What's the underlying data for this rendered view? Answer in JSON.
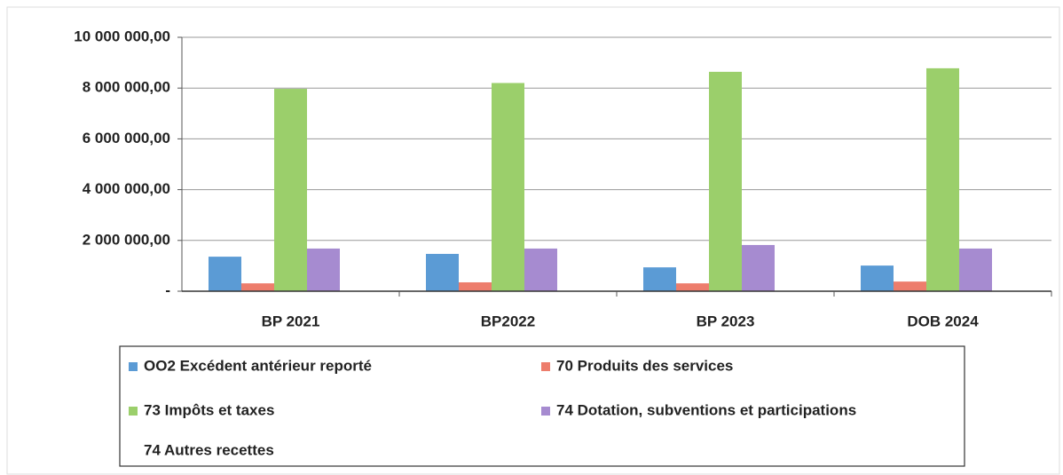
{
  "chart_data": {
    "type": "bar",
    "categories": [
      "BP 2021",
      "BP2022",
      "BP 2023",
      "DOB 2024"
    ],
    "series": [
      {
        "name": "OO2 Excédent antérieur reporté",
        "color": "#5b9bd5",
        "values": [
          1360000,
          1470000,
          940000,
          1010000
        ]
      },
      {
        "name": "70 Produits des services",
        "color": "#ed7d6c",
        "values": [
          310000,
          350000,
          310000,
          380000
        ]
      },
      {
        "name": "73 Impôts et taxes",
        "color": "#9bcf6b",
        "values": [
          7970000,
          8200000,
          8640000,
          8780000
        ]
      },
      {
        "name": "74 Dotation, subventions et participations",
        "color": "#a68bd0",
        "values": [
          1680000,
          1680000,
          1820000,
          1680000
        ]
      },
      {
        "name": "74 Autres recettes",
        "color": "#ffffff",
        "values": [
          0,
          0,
          0,
          0
        ]
      }
    ],
    "ylim": [
      0,
      10000000
    ],
    "yticks": [
      {
        "value": 0,
        "label": "-"
      },
      {
        "value": 2000000,
        "label": "2 000 000,00"
      },
      {
        "value": 4000000,
        "label": "4 000 000,00"
      },
      {
        "value": 6000000,
        "label": "6 000 000,00"
      },
      {
        "value": 8000000,
        "label": "8 000 000,00"
      },
      {
        "value": 10000000,
        "label": "10 000 000,00"
      }
    ],
    "grid": true
  }
}
